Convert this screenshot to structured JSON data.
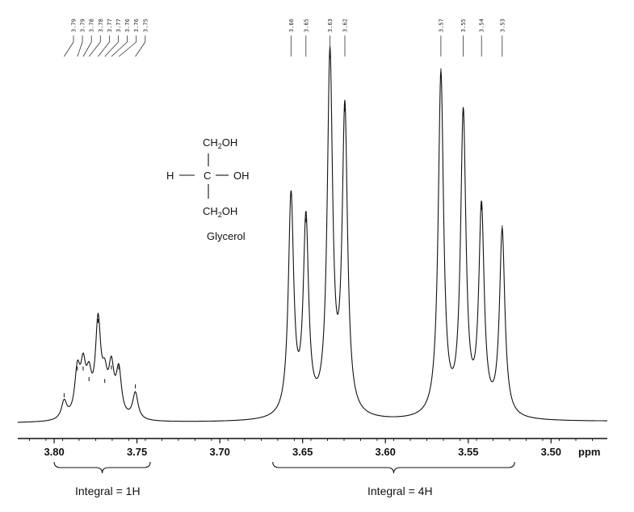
{
  "chart_data": {
    "type": "line",
    "title": "",
    "xlabel": "ppm",
    "ylabel": "",
    "xlim": [
      3.822,
      3.466
    ],
    "x_reversed": true,
    "grid": false,
    "x_ticks": [
      "3.80",
      "3.75",
      "3.70",
      "3.65",
      "3.60",
      "3.55",
      "3.50"
    ],
    "x_tick_values": [
      3.8,
      3.75,
      3.7,
      3.65,
      3.6,
      3.55,
      3.5
    ],
    "peak_labels_left": [
      "3.79",
      "3.79",
      "3.78",
      "3.78",
      "3.77",
      "3.77",
      "3.76",
      "3.76",
      "3.75"
    ],
    "peak_labels_right": [
      "3.66",
      "3.65",
      "3.63",
      "3.62",
      "3.57",
      "3.55",
      "3.54",
      "3.53"
    ],
    "series": [
      {
        "values": "relative peak intensity (arbitrary units)",
        "peaks": [
          {
            "x": 3.794,
            "y": 0.05
          },
          {
            "x": 3.786,
            "y": 0.125
          },
          {
            "x": 3.7825,
            "y": 0.125
          },
          {
            "x": 3.779,
            "y": 0.095
          },
          {
            "x": 3.7735,
            "y": 0.258
          },
          {
            "x": 3.7695,
            "y": 0.09
          },
          {
            "x": 3.7655,
            "y": 0.128
          },
          {
            "x": 3.761,
            "y": 0.128
          },
          {
            "x": 3.751,
            "y": 0.075
          },
          {
            "x": 3.657,
            "y": 0.615
          },
          {
            "x": 3.648,
            "y": 0.54
          },
          {
            "x": 3.6335,
            "y": 1.0
          },
          {
            "x": 3.6245,
            "y": 0.85
          },
          {
            "x": 3.5665,
            "y": 0.96
          },
          {
            "x": 3.553,
            "y": 0.84
          },
          {
            "x": 3.542,
            "y": 0.575
          },
          {
            "x": 3.5295,
            "y": 0.52
          }
        ]
      }
    ],
    "annotations": {
      "integral_left": "Integral = 1H",
      "integral_right": "Integral = 4H",
      "integral_left_range": [
        3.8,
        3.742
      ],
      "integral_right_range": [
        3.668,
        3.522
      ]
    }
  },
  "structure": {
    "top": "CH",
    "top_sub": "2",
    "top_end": "OH",
    "left": "H",
    "center": "C",
    "right": "OH",
    "bottom": "CH",
    "bottom_sub": "2",
    "bottom_end": "OH",
    "name": "Glycerol"
  }
}
